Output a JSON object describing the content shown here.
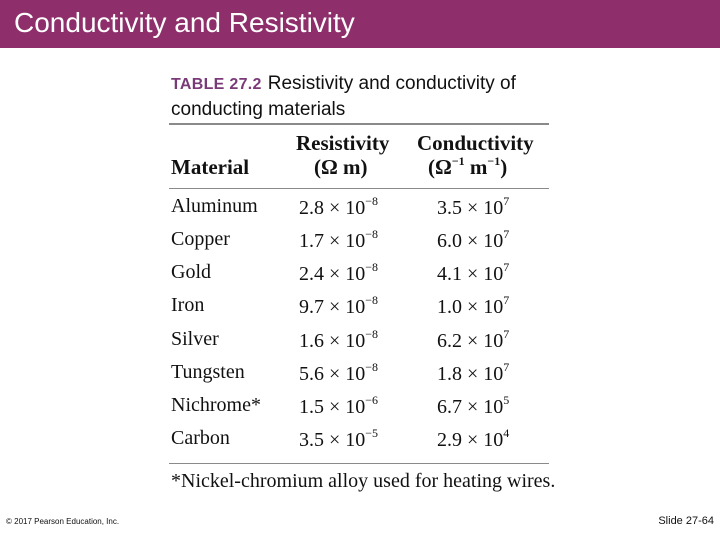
{
  "slide": {
    "title": "Conductivity and Resistivity",
    "copyright": "© 2017 Pearson Education, Inc.",
    "slide_number": "Slide 27-64",
    "colors": {
      "title_bar": "#8e2f6b",
      "table_number": "#7a3a78"
    }
  },
  "table": {
    "number": "TABLE 27.2",
    "caption": "Resistivity and conductivity of conducting materials",
    "headers": {
      "material": "Material",
      "resistivity": "Resistivity",
      "resistivity_unit": "(Ω m)",
      "conductivity": "Conductivity",
      "conductivity_unit_base": "(Ω",
      "conductivity_unit_exp1": "−1",
      "conductivity_unit_mid": " m",
      "conductivity_unit_exp2": "−1",
      "conductivity_unit_end": ")"
    },
    "rows": [
      {
        "material": "Aluminum",
        "res_mantissa": "2.8 × 10",
        "res_exp": "−8",
        "cond_mantissa": "3.5 × 10",
        "cond_exp": "7"
      },
      {
        "material": "Copper",
        "res_mantissa": "1.7 × 10",
        "res_exp": "−8",
        "cond_mantissa": "6.0 × 10",
        "cond_exp": "7"
      },
      {
        "material": "Gold",
        "res_mantissa": "2.4 × 10",
        "res_exp": "−8",
        "cond_mantissa": "4.1 × 10",
        "cond_exp": "7"
      },
      {
        "material": "Iron",
        "res_mantissa": "9.7 × 10",
        "res_exp": "−8",
        "cond_mantissa": "1.0 × 10",
        "cond_exp": "7"
      },
      {
        "material": "Silver",
        "res_mantissa": "1.6 × 10",
        "res_exp": "−8",
        "cond_mantissa": "6.2 × 10",
        "cond_exp": "7"
      },
      {
        "material": "Tungsten",
        "res_mantissa": "5.6 × 10",
        "res_exp": "−8",
        "cond_mantissa": "1.8 × 10",
        "cond_exp": "7"
      },
      {
        "material": "Nichrome*",
        "res_mantissa": "1.5 × 10",
        "res_exp": "−6",
        "cond_mantissa": "6.7 × 10",
        "cond_exp": "5"
      },
      {
        "material": "Carbon",
        "res_mantissa": "3.5 × 10",
        "res_exp": "−5",
        "cond_mantissa": "2.9 × 10",
        "cond_exp": "4"
      }
    ],
    "footnote": "*Nickel-chromium alloy used for heating wires."
  }
}
